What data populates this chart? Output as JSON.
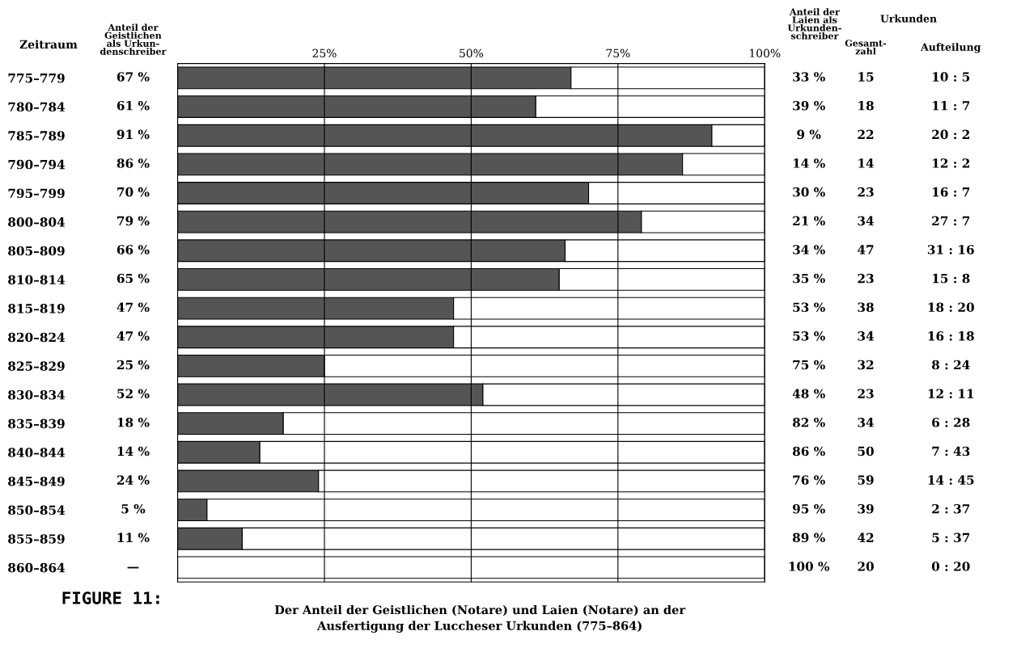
{
  "chart_data": {
    "type": "bar",
    "orientation": "horizontal",
    "stacked": true,
    "title": "FIGURE 11:",
    "subtitle": "Der Anteil der Geistlichen (Notare) und Laien (Notare) an der\nAusfertigung der Luccheser Urkunden (775–864)",
    "categories": [
      "775–779",
      "780–784",
      "785–789",
      "790–794",
      "795–799",
      "800–804",
      "805–809",
      "810–814",
      "815–819",
      "820–824",
      "825–829",
      "830–834",
      "835–839",
      "840–844",
      "845–849",
      "850–854",
      "855–859",
      "860–864"
    ],
    "series": [
      {
        "color": "#555555",
        "values": [
          67,
          61,
          91,
          86,
          70,
          79,
          66,
          65,
          47,
          47,
          25,
          52,
          18,
          14,
          24,
          5,
          11,
          null
        ],
        "value_labels": [
          "67 %",
          "61 %",
          "91 %",
          "86 %",
          "70 %",
          "79 %",
          "66 %",
          "65 %",
          "47 %",
          "47 %",
          "25 %",
          "52 %",
          "18 %",
          "14 %",
          "24 %",
          "5 %",
          "11 %",
          "—"
        ]
      },
      {
        "color": "#ffffff",
        "values": [
          33,
          39,
          9,
          14,
          30,
          21,
          34,
          35,
          53,
          53,
          75,
          48,
          82,
          86,
          76,
          95,
          89,
          100
        ],
        "value_labels": [
          "33 %",
          "39 %",
          "9 %",
          "14 %",
          "30 %",
          "21 %",
          "34 %",
          "35 %",
          "53 %",
          "53 %",
          "75 %",
          "48 %",
          "82 %",
          "86 %",
          "76 %",
          "95 %",
          "89 %",
          "100 %"
        ]
      }
    ],
    "xlim": [
      0,
      100
    ],
    "xticks": [
      {
        "value": 25,
        "label": "25%"
      },
      {
        "value": 50,
        "label": "50%"
      },
      {
        "value": 75,
        "label": "75%"
      },
      {
        "value": 100,
        "label": "100%"
      }
    ],
    "grid": "x",
    "annotations": [
      "Zeitraum",
      "Anteil der\nGeistlichen\nals Urkun-\ndenschreiber",
      "Anteil der\nLaien als\nUrkunden-\nschreiber",
      "Urkunden",
      "Gesamt-\nzahl",
      "Aufteilung",
      "15",
      "10 : 5",
      "18",
      "11 : 7",
      "22",
      "20 : 2",
      "14",
      "12 : 2",
      "23",
      "16 : 7",
      "34",
      "27 : 7",
      "47",
      "31 : 16",
      "23",
      "15 : 8",
      "38",
      "18 : 20",
      "34",
      "16 : 18",
      "32",
      "8 : 24",
      "23",
      "12 : 11",
      "34",
      "6 : 28",
      "50",
      "7 : 43",
      "59",
      "14 : 45",
      "39",
      "2 : 37",
      "42",
      "5 : 37",
      "20",
      "0 : 20"
    ]
  }
}
